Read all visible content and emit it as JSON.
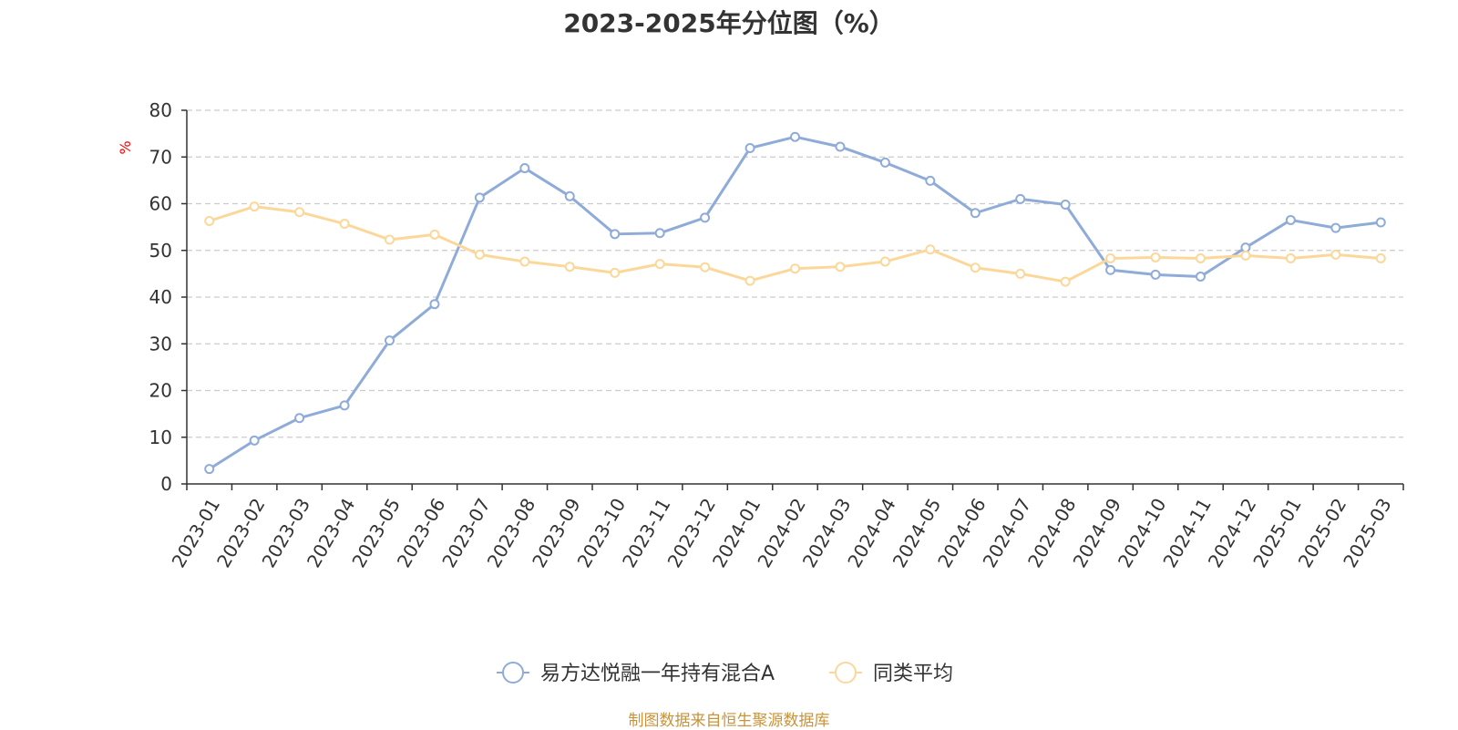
{
  "source_note": "制图数据来自恒生聚源数据库",
  "chart_data": {
    "type": "line",
    "title": "2023-2025年分位图（%）",
    "xlabel": "",
    "ylabel": "%",
    "ylim": [
      0,
      80
    ],
    "yticks": [
      0,
      10,
      20,
      30,
      40,
      50,
      60,
      70,
      80
    ],
    "grid": true,
    "legend_position": "bottom-center",
    "categories": [
      "2023-01",
      "2023-02",
      "2023-03",
      "2023-04",
      "2023-05",
      "2023-06",
      "2023-07",
      "2023-08",
      "2023-09",
      "2023-10",
      "2023-11",
      "2023-12",
      "2024-01",
      "2024-02",
      "2024-03",
      "2024-04",
      "2024-05",
      "2024-06",
      "2024-07",
      "2024-08",
      "2024-09",
      "2024-10",
      "2024-11",
      "2024-12",
      "2025-01",
      "2025-02",
      "2025-03"
    ],
    "series": [
      {
        "name": "易方达悦融一年持有混合A",
        "color": "#8fabd8",
        "values": [
          3.2,
          9.3,
          14.1,
          16.8,
          30.7,
          38.5,
          61.3,
          67.6,
          61.6,
          53.5,
          53.7,
          57.0,
          71.9,
          74.3,
          72.2,
          68.8,
          64.9,
          58.0,
          61.0,
          59.8,
          45.8,
          44.8,
          44.4,
          50.6,
          56.5,
          54.8,
          56.0
        ]
      },
      {
        "name": "同类平均",
        "color": "#fbd89a",
        "values": [
          56.3,
          59.4,
          58.2,
          55.7,
          52.3,
          53.4,
          49.1,
          47.6,
          46.5,
          45.2,
          47.1,
          46.4,
          43.5,
          46.1,
          46.5,
          47.6,
          50.2,
          46.3,
          45.0,
          43.3,
          48.3,
          48.5,
          48.3,
          48.9,
          48.3,
          49.1,
          48.3
        ]
      }
    ]
  }
}
